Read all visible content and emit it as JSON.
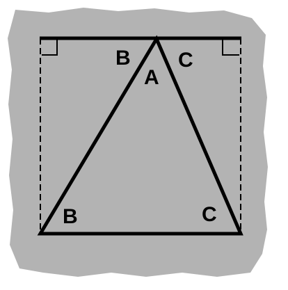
{
  "labels": {
    "apex_angle": "A",
    "top_left_angle": "B",
    "top_right_angle": "C",
    "bottom_left_angle": "B",
    "bottom_right_angle": "C"
  },
  "colors": {
    "background_paper": "#b3b3b3",
    "lines": "#000000",
    "page": "#ffffff"
  }
}
